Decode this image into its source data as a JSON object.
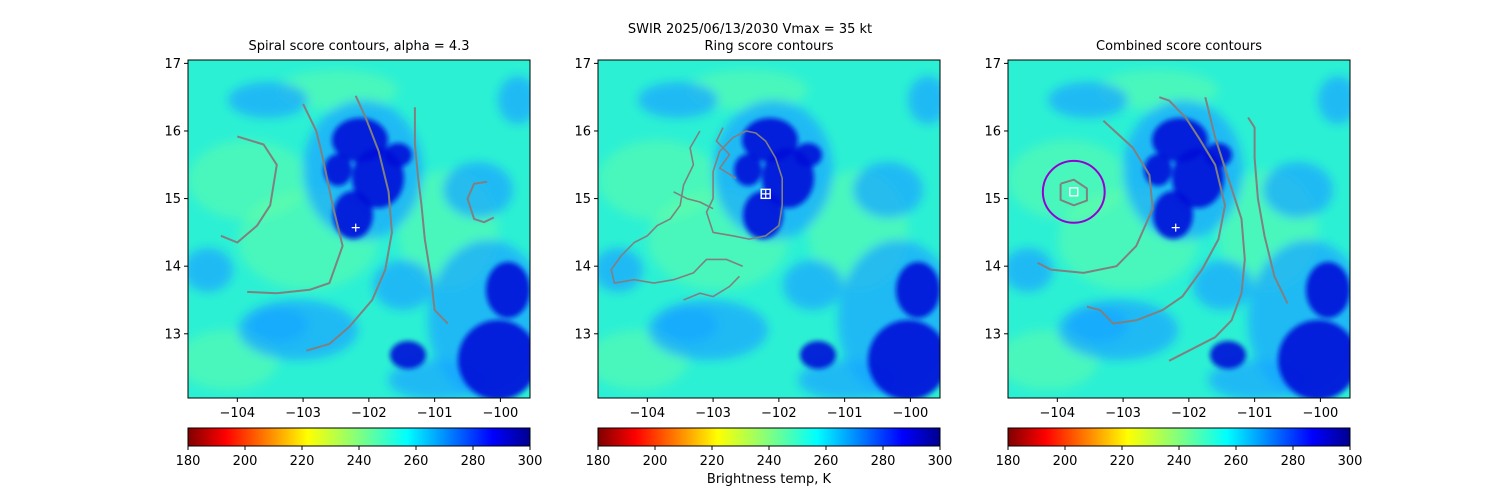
{
  "figure": {
    "suptitle": "SWIR  2025/06/13/2030    Vmax = 35 kt",
    "colorbar_label": "Brightness temp, K"
  },
  "chart_data": [
    {
      "type": "heatmap",
      "title": "Spiral score contours, alpha =  4.3",
      "xlabel": "",
      "ylabel": "",
      "xlim": [
        -104.75,
        -99.55
      ],
      "ylim": [
        12.05,
        17.05
      ],
      "xticks": [
        -104,
        -103,
        -102,
        -101,
        -100
      ],
      "xtick_labels": [
        "−104",
        "−103",
        "−102",
        "−101",
        "−100"
      ],
      "yticks": [
        13,
        14,
        15,
        16,
        17
      ],
      "ytick_labels": [
        "13",
        "14",
        "15",
        "16",
        "17"
      ],
      "colormap": "jet",
      "color_range": [
        180,
        300
      ],
      "colorbar_ticks": [
        "180",
        "200",
        "220",
        "240",
        "260",
        "280",
        "300"
      ],
      "center_marker": {
        "lon": -102.2,
        "lat": 14.57
      },
      "contours": [
        [
          [
            -104.0,
            15.92
          ],
          [
            -103.6,
            15.8
          ],
          [
            -103.4,
            15.5
          ],
          [
            -103.5,
            14.9
          ],
          [
            -103.7,
            14.6
          ],
          [
            -104.0,
            14.35
          ],
          [
            -104.25,
            14.45
          ]
        ],
        [
          [
            -103.85,
            13.62
          ],
          [
            -103.4,
            13.6
          ],
          [
            -102.9,
            13.65
          ],
          [
            -102.6,
            13.75
          ],
          [
            -102.4,
            14.3
          ],
          [
            -102.55,
            14.9
          ],
          [
            -102.7,
            15.6
          ],
          [
            -102.8,
            16.0
          ],
          [
            -103.0,
            16.4
          ]
        ],
        [
          [
            -102.95,
            12.75
          ],
          [
            -102.6,
            12.85
          ],
          [
            -102.3,
            13.1
          ],
          [
            -101.95,
            13.5
          ],
          [
            -101.75,
            13.95
          ],
          [
            -101.65,
            14.5
          ],
          [
            -101.7,
            15.1
          ],
          [
            -101.85,
            15.7
          ],
          [
            -102.05,
            16.2
          ],
          [
            -102.2,
            16.52
          ]
        ],
        [
          [
            -100.8,
            13.15
          ],
          [
            -101.0,
            13.35
          ],
          [
            -101.05,
            13.8
          ],
          [
            -101.15,
            14.4
          ],
          [
            -101.2,
            14.9
          ],
          [
            -101.25,
            15.3
          ],
          [
            -101.3,
            15.8
          ],
          [
            -101.3,
            16.35
          ]
        ],
        [
          [
            -100.2,
            15.25
          ],
          [
            -100.4,
            15.22
          ],
          [
            -100.5,
            15.0
          ],
          [
            -100.4,
            14.7
          ],
          [
            -100.25,
            14.65
          ],
          [
            -100.1,
            14.72
          ]
        ]
      ],
      "contour_color": "#808080"
    },
    {
      "type": "heatmap",
      "title": "Ring score contours",
      "xlabel": "",
      "ylabel": "",
      "xlim": [
        -104.75,
        -99.55
      ],
      "ylim": [
        12.05,
        17.05
      ],
      "xticks": [
        -104,
        -103,
        -102,
        -101,
        -100
      ],
      "xtick_labels": [
        "−104",
        "−103",
        "−102",
        "−101",
        "−100"
      ],
      "yticks": [
        13,
        14,
        15,
        16,
        17
      ],
      "ytick_labels": [
        "13",
        "14",
        "15",
        "16",
        "17"
      ],
      "colormap": "jet",
      "color_range": [
        180,
        300
      ],
      "colorbar_ticks": [
        "180",
        "200",
        "220",
        "240",
        "260",
        "280",
        "300"
      ],
      "center_marker": {
        "lon": -102.2,
        "lat": 15.07
      },
      "contours": [
        [
          [
            -102.5,
            16.0
          ],
          [
            -102.7,
            15.9
          ],
          [
            -102.9,
            15.7
          ],
          [
            -103.0,
            15.4
          ],
          [
            -103.0,
            15.0
          ],
          [
            -103.1,
            14.8
          ],
          [
            -103.0,
            14.5
          ],
          [
            -102.7,
            14.45
          ],
          [
            -102.45,
            14.4
          ],
          [
            -102.2,
            14.45
          ],
          [
            -102.0,
            14.6
          ],
          [
            -101.95,
            14.9
          ],
          [
            -101.95,
            15.3
          ],
          [
            -102.05,
            15.6
          ],
          [
            -102.2,
            15.85
          ],
          [
            -102.35,
            15.97
          ],
          [
            -102.5,
            16.0
          ]
        ],
        [
          [
            -103.2,
            16.0
          ],
          [
            -103.35,
            15.75
          ],
          [
            -103.3,
            15.5
          ],
          [
            -103.45,
            15.2
          ],
          [
            -103.5,
            14.9
          ],
          [
            -103.65,
            14.7
          ],
          [
            -103.85,
            14.6
          ],
          [
            -104.0,
            14.45
          ],
          [
            -104.2,
            14.35
          ],
          [
            -104.4,
            14.15
          ],
          [
            -104.55,
            13.95
          ],
          [
            -104.5,
            13.75
          ],
          [
            -104.2,
            13.8
          ],
          [
            -103.9,
            13.75
          ],
          [
            -103.6,
            13.8
          ],
          [
            -103.3,
            13.9
          ],
          [
            -103.1,
            14.1
          ],
          [
            -102.8,
            14.1
          ],
          [
            -102.55,
            14.0
          ]
        ],
        [
          [
            -103.45,
            13.5
          ],
          [
            -103.2,
            13.6
          ],
          [
            -103.0,
            13.55
          ],
          [
            -102.75,
            13.7
          ],
          [
            -102.6,
            13.85
          ]
        ],
        [
          [
            -103.6,
            15.1
          ],
          [
            -103.4,
            15.0
          ],
          [
            -103.2,
            14.95
          ],
          [
            -103.0,
            14.85
          ]
        ],
        [
          [
            -102.85,
            16.05
          ],
          [
            -102.95,
            15.85
          ],
          [
            -102.75,
            15.65
          ],
          [
            -102.9,
            15.45
          ],
          [
            -102.65,
            15.3
          ]
        ]
      ],
      "contour_color": "#808080"
    },
    {
      "type": "heatmap",
      "title": "Combined score contours",
      "xlabel": "",
      "ylabel": "",
      "xlim": [
        -104.75,
        -99.55
      ],
      "ylim": [
        12.05,
        17.05
      ],
      "xticks": [
        -104,
        -103,
        -102,
        -101,
        -100
      ],
      "xtick_labels": [
        "−104",
        "−103",
        "−102",
        "−101",
        "−100"
      ],
      "yticks": [
        13,
        14,
        15,
        16,
        17
      ],
      "ytick_labels": [
        "13",
        "14",
        "15",
        "16",
        "17"
      ],
      "colormap": "jet",
      "color_range": [
        180,
        300
      ],
      "colorbar_ticks": [
        "180",
        "200",
        "220",
        "240",
        "260",
        "280",
        "300"
      ],
      "center_marker": {
        "lon": -102.2,
        "lat": 14.57
      },
      "best_center": {
        "lon": -103.75,
        "lat": 15.1
      },
      "ring": {
        "lon": -103.75,
        "lat": 15.1,
        "radius_deg": 0.47,
        "color": "#9400d3"
      },
      "contours": [
        [
          [
            -103.95,
            15.22
          ],
          [
            -103.75,
            15.28
          ],
          [
            -103.55,
            15.15
          ],
          [
            -103.55,
            14.97
          ],
          [
            -103.75,
            14.9
          ],
          [
            -103.95,
            14.98
          ],
          [
            -103.95,
            15.22
          ]
        ],
        [
          [
            -104.3,
            14.05
          ],
          [
            -104.1,
            13.95
          ],
          [
            -103.6,
            13.9
          ],
          [
            -103.1,
            14.0
          ],
          [
            -102.8,
            14.3
          ],
          [
            -102.55,
            14.85
          ],
          [
            -102.6,
            15.35
          ],
          [
            -102.85,
            15.75
          ],
          [
            -103.3,
            16.15
          ]
        ],
        [
          [
            -103.55,
            13.4
          ],
          [
            -103.35,
            13.35
          ],
          [
            -103.15,
            13.15
          ],
          [
            -102.8,
            13.2
          ],
          [
            -102.4,
            13.35
          ],
          [
            -102.1,
            13.55
          ],
          [
            -101.8,
            13.95
          ],
          [
            -101.55,
            14.4
          ],
          [
            -101.45,
            14.9
          ],
          [
            -101.6,
            15.5
          ],
          [
            -101.85,
            15.9
          ],
          [
            -102.05,
            16.2
          ],
          [
            -102.3,
            16.45
          ],
          [
            -102.45,
            16.5
          ]
        ],
        [
          [
            -102.3,
            12.6
          ],
          [
            -102.0,
            12.75
          ],
          [
            -101.6,
            12.95
          ],
          [
            -101.35,
            13.2
          ],
          [
            -101.2,
            13.6
          ],
          [
            -101.15,
            14.1
          ],
          [
            -101.2,
            14.7
          ],
          [
            -101.4,
            15.3
          ],
          [
            -101.6,
            15.9
          ],
          [
            -101.75,
            16.5
          ]
        ],
        [
          [
            -100.5,
            13.45
          ],
          [
            -100.7,
            13.85
          ],
          [
            -100.85,
            14.45
          ],
          [
            -100.95,
            15.0
          ],
          [
            -101.0,
            15.6
          ],
          [
            -101.0,
            16.05
          ],
          [
            -101.1,
            16.2
          ]
        ]
      ],
      "contour_color": "#808080"
    }
  ]
}
